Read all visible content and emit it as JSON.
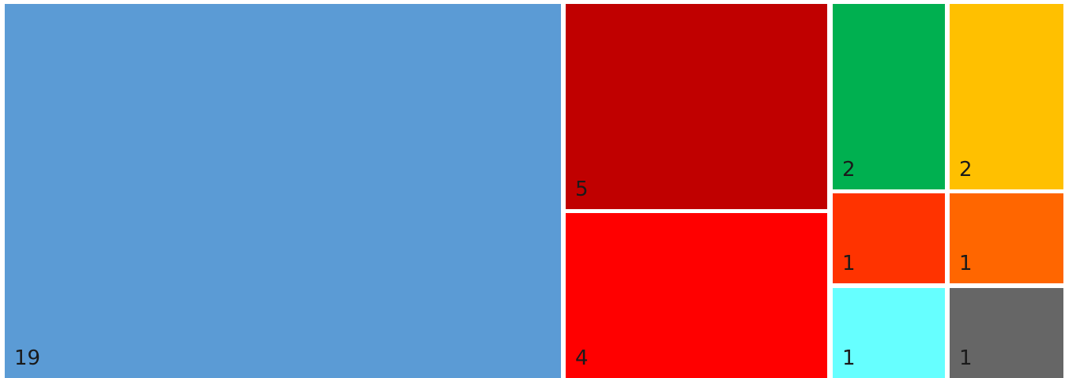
{
  "chart_data": {
    "type": "treemap",
    "title": "",
    "tiles": [
      {
        "value": 19,
        "label": "19",
        "color": "#5b9bd5"
      },
      {
        "value": 5,
        "label": "5",
        "color": "#c00000"
      },
      {
        "value": 4,
        "label": "4",
        "color": "#ff0000"
      },
      {
        "value": 2,
        "label": "2",
        "color": "#00b050"
      },
      {
        "value": 2,
        "label": "2",
        "color": "#ffc000"
      },
      {
        "value": 1,
        "label": "1",
        "color": "#ff3300"
      },
      {
        "value": 1,
        "label": "1",
        "color": "#ff6600"
      },
      {
        "value": 1,
        "label": "1",
        "color": "#66ffff"
      },
      {
        "value": 1,
        "label": "1",
        "color": "#666666"
      }
    ]
  }
}
